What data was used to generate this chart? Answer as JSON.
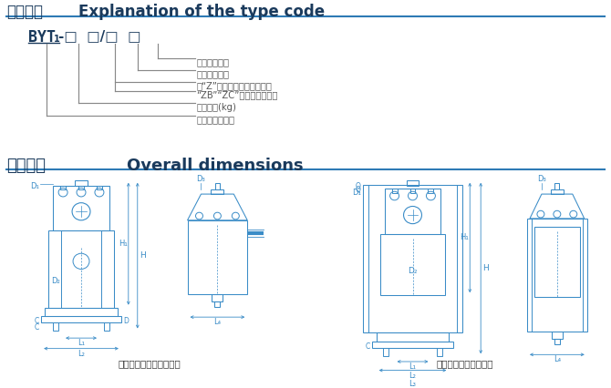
{
  "title_zh": "型号意义",
  "title_en": "Explanation of the type code",
  "bg_color": "#ffffff",
  "main_color": "#2e7ab5",
  "dark_color": "#1a3a5c",
  "text_color": "#555555",
  "annotations": [
    "附加装置代号",
    "额定行程代号",
    "有“Z”表示不具有负荷弹簧，",
    "“ZB”“ZC”表示结构上异型",
    "额定推力(kg)",
    "隔爆推动器型号"
  ],
  "section2_zh": "外形尺寸",
  "section2_en": "Overall dimensions",
  "caption1": "不具有负荷弹簧的推动器",
  "caption2": "具有负荷弹簧的推动器",
  "line_color": "#3a8cc7",
  "dim_color": "#3a8cc7",
  "gray_color": "#888888"
}
